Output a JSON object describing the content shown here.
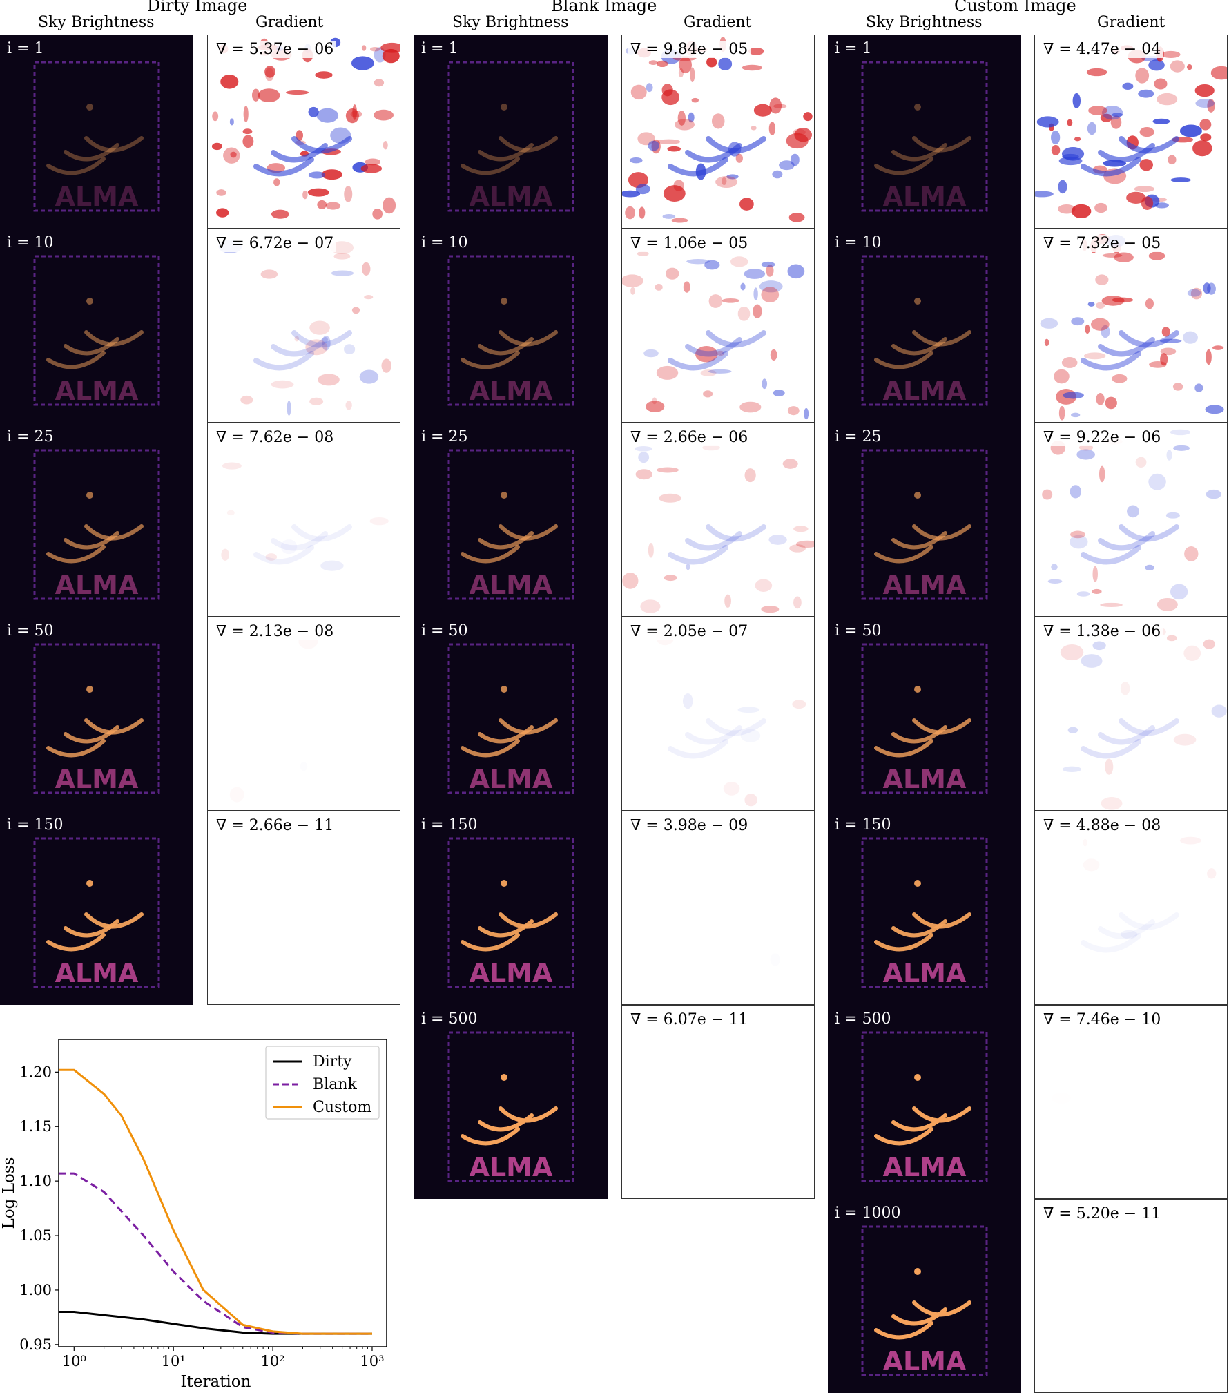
{
  "groups": [
    {
      "title": "Dirty Image",
      "sky_title": "Sky Brightness",
      "grad_title": "Gradient",
      "panels": [
        {
          "iter": "i = 1",
          "grad": "∇ = 5.37e − 06",
          "level": 1.0
        },
        {
          "iter": "i = 10",
          "grad": "∇ = 6.72e − 07",
          "level": 0.35
        },
        {
          "iter": "i = 25",
          "grad": "∇ = 7.62e − 08",
          "level": 0.12
        },
        {
          "iter": "i = 50",
          "grad": "∇ = 2.13e − 08",
          "level": 0.05
        },
        {
          "iter": "i = 150",
          "grad": "∇ = 2.66e − 11",
          "level": 0.0
        }
      ]
    },
    {
      "title": "Blank Image",
      "sky_title": "Sky Brightness",
      "grad_title": "Gradient",
      "panels": [
        {
          "iter": "i = 1",
          "grad": "∇ = 9.84e − 05",
          "level": 1.0
        },
        {
          "iter": "i = 10",
          "grad": "∇ = 1.06e − 05",
          "level": 0.6
        },
        {
          "iter": "i = 25",
          "grad": "∇ = 2.66e − 06",
          "level": 0.35
        },
        {
          "iter": "i = 50",
          "grad": "∇ = 2.05e − 07",
          "level": 0.12
        },
        {
          "iter": "i = 150",
          "grad": "∇ = 3.98e − 09",
          "level": 0.02
        },
        {
          "iter": "i = 500",
          "grad": "∇ = 6.07e − 11",
          "level": 0.0
        }
      ]
    },
    {
      "title": "Custom Image",
      "sky_title": "Sky Brightness",
      "grad_title": "Gradient",
      "panels": [
        {
          "iter": "i = 1",
          "grad": "∇ = 4.47e − 04",
          "level": 1.0
        },
        {
          "iter": "i = 10",
          "grad": "∇ = 7.32e − 05",
          "level": 0.75
        },
        {
          "iter": "i = 25",
          "grad": "∇ = 9.22e − 06",
          "level": 0.45
        },
        {
          "iter": "i = 50",
          "grad": "∇ = 1.38e − 06",
          "level": 0.25
        },
        {
          "iter": "i = 150",
          "grad": "∇ = 4.88e − 08",
          "level": 0.08
        },
        {
          "iter": "i = 500",
          "grad": "∇ = 7.46e − 10",
          "level": 0.01
        },
        {
          "iter": "i = 1000",
          "grad": "∇ = 5.20e − 11",
          "level": 0.0
        }
      ]
    }
  ],
  "panel_text": "ALMA",
  "colors": {
    "dirty": "#000000",
    "blank": "#7b1fa2",
    "custom": "#f0900a",
    "sky_bg": "#0b0516",
    "sky_bright": "#f6a35c",
    "grad_red": "#d7191c",
    "grad_blue": "#2c3fd6"
  },
  "chart_data": {
    "type": "line",
    "xlabel": "Iteration",
    "ylabel": "Log Loss",
    "xscale": "log",
    "xlim": [
      0.7,
      1400
    ],
    "ylim": [
      0.948,
      1.23
    ],
    "xticks": [
      1,
      10,
      100,
      1000
    ],
    "xticklabels": [
      "10⁰",
      "10¹",
      "10²",
      "10³"
    ],
    "yticks": [
      0.95,
      1.0,
      1.05,
      1.1,
      1.15,
      1.2
    ],
    "yticklabels": [
      "0.95",
      "1.00",
      "1.05",
      "1.10",
      "1.15",
      "1.20"
    ],
    "legend_position": "top-right",
    "series": [
      {
        "name": "Dirty",
        "style": "solid",
        "color": "#000000",
        "x": [
          0.7,
          1,
          2,
          5,
          10,
          20,
          50,
          100,
          1000
        ],
        "y": [
          0.98,
          0.98,
          0.977,
          0.973,
          0.969,
          0.965,
          0.961,
          0.96,
          0.96
        ]
      },
      {
        "name": "Blank",
        "style": "dashed",
        "color": "#7b1fa2",
        "x": [
          0.7,
          1,
          2,
          5,
          10,
          20,
          50,
          100,
          200,
          1000
        ],
        "y": [
          1.107,
          1.107,
          1.09,
          1.05,
          1.017,
          0.99,
          0.966,
          0.961,
          0.96,
          0.96
        ]
      },
      {
        "name": "Custom",
        "style": "solid",
        "color": "#f0900a",
        "x": [
          0.7,
          1,
          2,
          3,
          5,
          10,
          20,
          50,
          100,
          200,
          1000
        ],
        "y": [
          1.202,
          1.202,
          1.18,
          1.16,
          1.12,
          1.055,
          1.0,
          0.968,
          0.962,
          0.96,
          0.96
        ]
      }
    ]
  }
}
